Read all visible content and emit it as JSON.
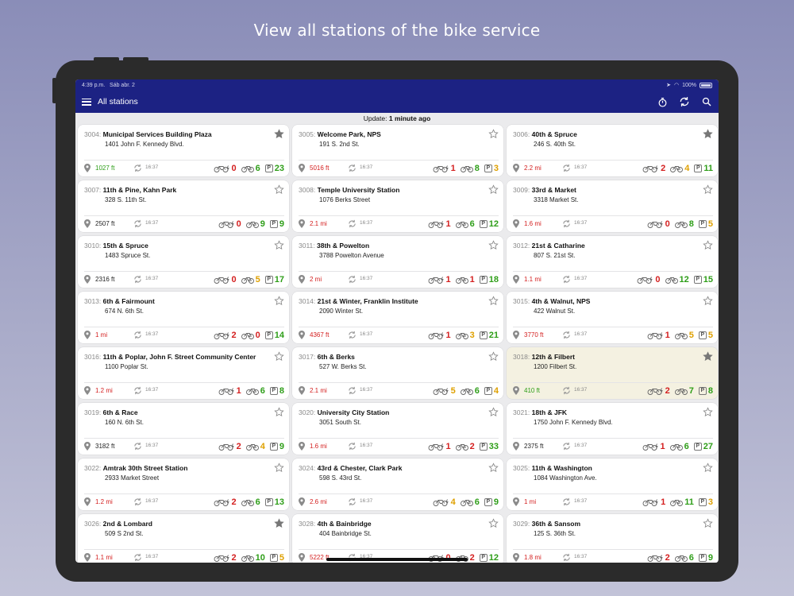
{
  "caption": "View all stations of the bike service",
  "statusbar": {
    "time": "4:39 p.m.",
    "date": "Sáb abr. 2",
    "battery": "100%"
  },
  "navbar": {
    "title": "All stations"
  },
  "update": {
    "prefix": "Update:",
    "value": "1 minute ago"
  },
  "colors": {
    "green": "#2e9e18",
    "red": "#d42020",
    "orange": "#dfa000",
    "navbar": "#1c2283",
    "highlight": "#f4f1e1"
  },
  "stations": [
    {
      "num": "3004:",
      "name": "Municipal Services Building Plaza",
      "addr": "1401 John F. Kennedy Blvd.",
      "dist": "1027 ft",
      "dc": "green",
      "time": "16:37",
      "ebikes": "0",
      "ec": "red",
      "bikes": "6",
      "bc": "green",
      "docks": "23",
      "pc": "green",
      "fav": true,
      "hl": false
    },
    {
      "num": "3005:",
      "name": "Welcome Park, NPS",
      "addr": "191 S. 2nd St.",
      "dist": "5016 ft",
      "dc": "red",
      "time": "16:37",
      "ebikes": "1",
      "ec": "red",
      "bikes": "8",
      "bc": "green",
      "docks": "3",
      "pc": "orange",
      "fav": false,
      "hl": false
    },
    {
      "num": "3006:",
      "name": "40th & Spruce",
      "addr": "246 S. 40th St.",
      "dist": "2.2 mi",
      "dc": "red",
      "time": "16:37",
      "ebikes": "2",
      "ec": "red",
      "bikes": "4",
      "bc": "orange",
      "docks": "11",
      "pc": "green",
      "fav": true,
      "hl": false
    },
    {
      "num": "3007:",
      "name": "11th & Pine, Kahn Park",
      "addr": "328 S. 11th St.",
      "dist": "2507 ft",
      "dc": "dark",
      "time": "16:37",
      "ebikes": "0",
      "ec": "red",
      "bikes": "9",
      "bc": "green",
      "docks": "9",
      "pc": "green",
      "fav": false,
      "hl": false
    },
    {
      "num": "3008:",
      "name": "Temple University Station",
      "addr": "1076 Berks Street",
      "dist": "2.1 mi",
      "dc": "red",
      "time": "16:37",
      "ebikes": "1",
      "ec": "red",
      "bikes": "6",
      "bc": "green",
      "docks": "12",
      "pc": "green",
      "fav": false,
      "hl": false
    },
    {
      "num": "3009:",
      "name": "33rd & Market",
      "addr": "3318 Market St.",
      "dist": "1.6 mi",
      "dc": "red",
      "time": "16:37",
      "ebikes": "0",
      "ec": "red",
      "bikes": "8",
      "bc": "green",
      "docks": "5",
      "pc": "orange",
      "fav": false,
      "hl": false
    },
    {
      "num": "3010:",
      "name": "15th & Spruce",
      "addr": "1483 Spruce St.",
      "dist": "2316 ft",
      "dc": "dark",
      "time": "16:37",
      "ebikes": "0",
      "ec": "red",
      "bikes": "5",
      "bc": "orange",
      "docks": "17",
      "pc": "green",
      "fav": false,
      "hl": false
    },
    {
      "num": "3011:",
      "name": "38th & Powelton",
      "addr": "3788 Powelton Avenue",
      "dist": "2 mi",
      "dc": "red",
      "time": "16:37",
      "ebikes": "1",
      "ec": "red",
      "bikes": "1",
      "bc": "red",
      "docks": "18",
      "pc": "green",
      "fav": false,
      "hl": false
    },
    {
      "num": "3012:",
      "name": "21st & Catharine",
      "addr": "807 S. 21st St.",
      "dist": "1.1 mi",
      "dc": "red",
      "time": "16:37",
      "ebikes": "0",
      "ec": "red",
      "bikes": "12",
      "bc": "green",
      "docks": "15",
      "pc": "green",
      "fav": false,
      "hl": false
    },
    {
      "num": "3013:",
      "name": "6th & Fairmount",
      "addr": "674 N. 6th St.",
      "dist": "1 mi",
      "dc": "red",
      "time": "16:37",
      "ebikes": "2",
      "ec": "red",
      "bikes": "0",
      "bc": "red",
      "docks": "14",
      "pc": "green",
      "fav": false,
      "hl": false
    },
    {
      "num": "3014:",
      "name": "21st & Winter, Franklin Institute",
      "addr": "2090 Winter St.",
      "dist": "4367 ft",
      "dc": "red",
      "time": "16:37",
      "ebikes": "1",
      "ec": "red",
      "bikes": "3",
      "bc": "orange",
      "docks": "21",
      "pc": "green",
      "fav": false,
      "hl": false
    },
    {
      "num": "3015:",
      "name": "4th & Walnut, NPS",
      "addr": "422 Walnut St.",
      "dist": "3770 ft",
      "dc": "red",
      "time": "16:37",
      "ebikes": "1",
      "ec": "red",
      "bikes": "5",
      "bc": "orange",
      "docks": "5",
      "pc": "orange",
      "fav": false,
      "hl": false
    },
    {
      "num": "3016:",
      "name": "11th & Poplar, John F. Street Community Center",
      "addr": "1100 Poplar St.",
      "dist": "1.2 mi",
      "dc": "red",
      "time": "16:37",
      "ebikes": "1",
      "ec": "red",
      "bikes": "6",
      "bc": "green",
      "docks": "8",
      "pc": "green",
      "fav": false,
      "hl": false
    },
    {
      "num": "3017:",
      "name": "6th & Berks",
      "addr": "527 W. Berks St.",
      "dist": "2.1 mi",
      "dc": "red",
      "time": "16:37",
      "ebikes": "5",
      "ec": "orange",
      "bikes": "6",
      "bc": "green",
      "docks": "4",
      "pc": "orange",
      "fav": false,
      "hl": false
    },
    {
      "num": "3018:",
      "name": "12th & Filbert",
      "addr": "1200 Filbert St.",
      "dist": "410 ft",
      "dc": "green",
      "time": "16:37",
      "ebikes": "2",
      "ec": "red",
      "bikes": "7",
      "bc": "green",
      "docks": "8",
      "pc": "green",
      "fav": true,
      "hl": true
    },
    {
      "num": "3019:",
      "name": "6th & Race",
      "addr": "160 N. 6th St.",
      "dist": "3182 ft",
      "dc": "dark",
      "time": "16:37",
      "ebikes": "2",
      "ec": "red",
      "bikes": "4",
      "bc": "orange",
      "docks": "9",
      "pc": "green",
      "fav": false,
      "hl": false
    },
    {
      "num": "3020:",
      "name": "University City Station",
      "addr": "3051 South St.",
      "dist": "1.6 mi",
      "dc": "red",
      "time": "16:37",
      "ebikes": "1",
      "ec": "red",
      "bikes": "2",
      "bc": "red",
      "docks": "33",
      "pc": "green",
      "fav": false,
      "hl": false
    },
    {
      "num": "3021:",
      "name": "18th & JFK",
      "addr": "1750 John F. Kennedy Blvd.",
      "dist": "2375 ft",
      "dc": "dark",
      "time": "16:37",
      "ebikes": "1",
      "ec": "red",
      "bikes": "6",
      "bc": "green",
      "docks": "27",
      "pc": "green",
      "fav": false,
      "hl": false
    },
    {
      "num": "3022:",
      "name": "Amtrak 30th Street Station",
      "addr": "2933 Market Street",
      "dist": "1.2 mi",
      "dc": "red",
      "time": "16:37",
      "ebikes": "2",
      "ec": "red",
      "bikes": "6",
      "bc": "green",
      "docks": "13",
      "pc": "green",
      "fav": false,
      "hl": false
    },
    {
      "num": "3024:",
      "name": "43rd & Chester, Clark Park",
      "addr": "598 S. 43rd St.",
      "dist": "2.6 mi",
      "dc": "red",
      "time": "16:37",
      "ebikes": "4",
      "ec": "orange",
      "bikes": "6",
      "bc": "green",
      "docks": "9",
      "pc": "green",
      "fav": false,
      "hl": false
    },
    {
      "num": "3025:",
      "name": "11th & Washington",
      "addr": "1084 Washington Ave.",
      "dist": "1 mi",
      "dc": "red",
      "time": "16:37",
      "ebikes": "1",
      "ec": "red",
      "bikes": "11",
      "bc": "green",
      "docks": "3",
      "pc": "orange",
      "fav": false,
      "hl": false
    },
    {
      "num": "3026:",
      "name": "2nd & Lombard",
      "addr": "509 S 2nd St.",
      "dist": "1.1 mi",
      "dc": "red",
      "time": "16:37",
      "ebikes": "2",
      "ec": "red",
      "bikes": "10",
      "bc": "green",
      "docks": "5",
      "pc": "orange",
      "fav": true,
      "hl": false
    },
    {
      "num": "3028:",
      "name": "4th & Bainbridge",
      "addr": "404 Bainbridge St.",
      "dist": "5222 ft",
      "dc": "red",
      "time": "16:37",
      "ebikes": "0",
      "ec": "red",
      "bikes": "2",
      "bc": "red",
      "docks": "12",
      "pc": "green",
      "fav": false,
      "hl": false
    },
    {
      "num": "3029:",
      "name": "36th & Sansom",
      "addr": "125 S. 36th St.",
      "dist": "1.8 mi",
      "dc": "red",
      "time": "16:37",
      "ebikes": "2",
      "ec": "red",
      "bikes": "6",
      "bc": "green",
      "docks": "9",
      "pc": "green",
      "fav": false,
      "hl": false
    }
  ]
}
